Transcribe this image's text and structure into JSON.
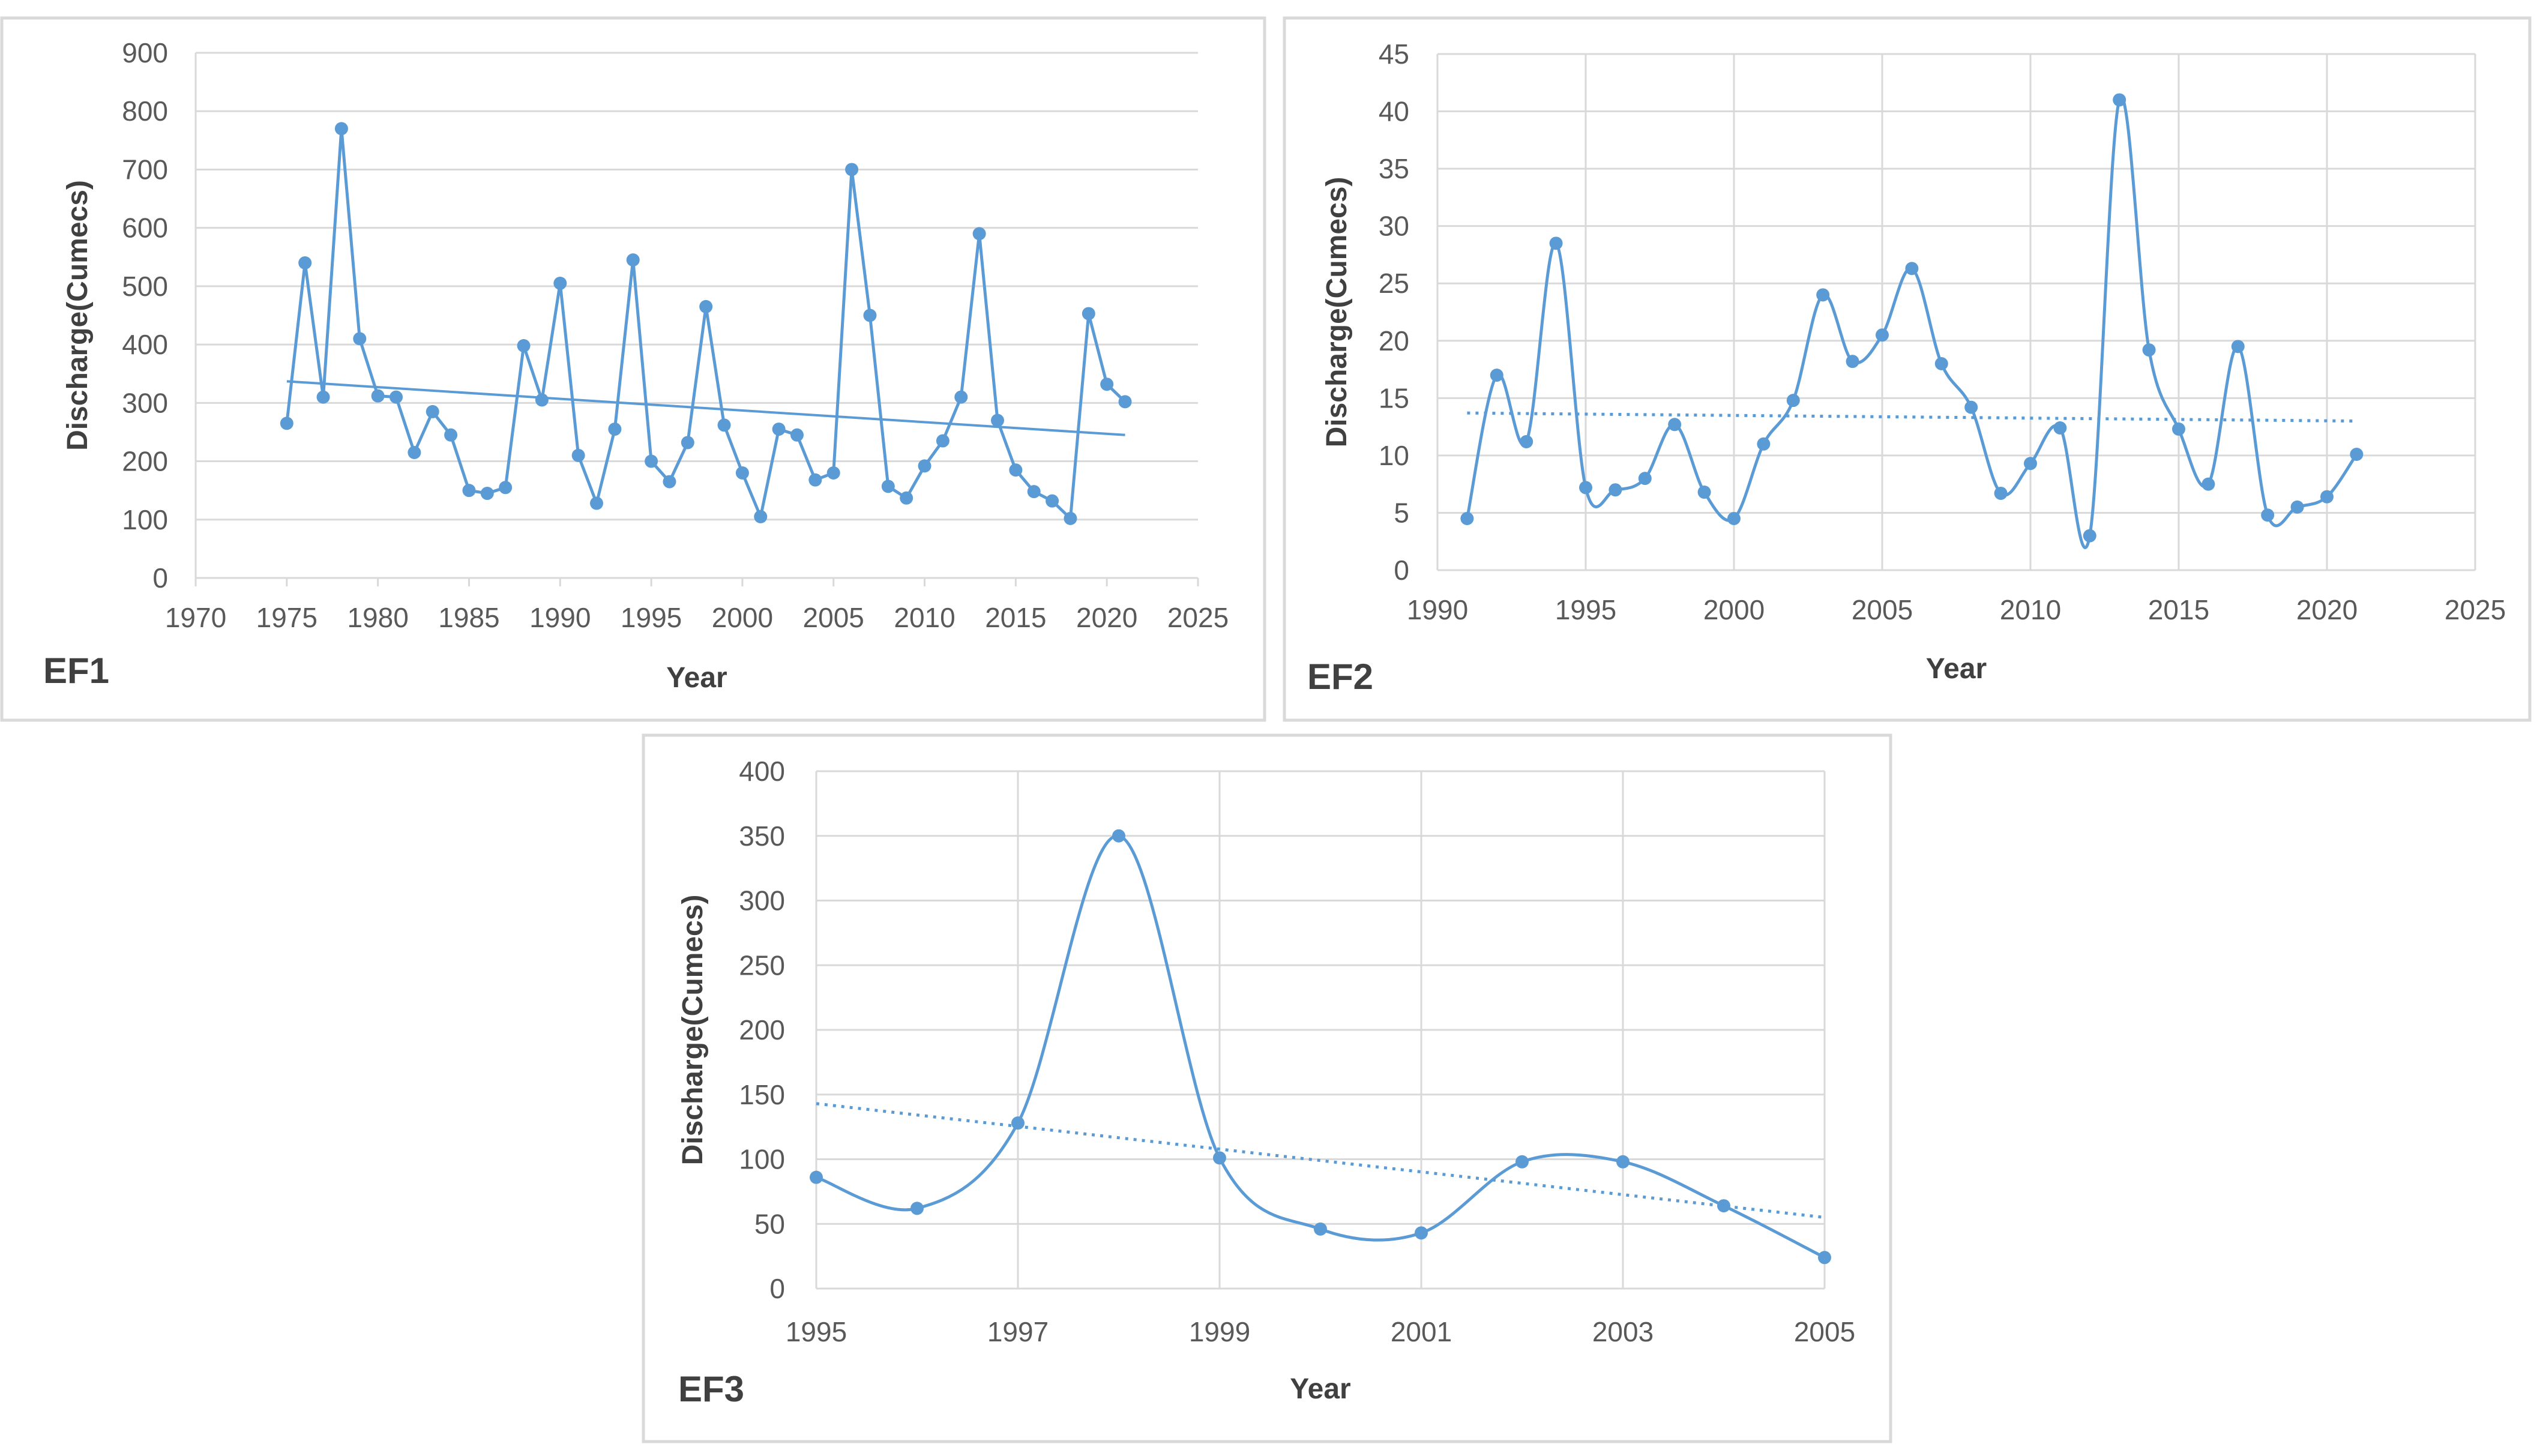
{
  "chart_data": [
    {
      "id": "ef1",
      "type": "line",
      "panel_label": "EF1",
      "xlabel": "Year",
      "ylabel": "Discharge(Cumecs)",
      "xlim": [
        1970,
        2025
      ],
      "xticks": [
        1970,
        1975,
        1980,
        1985,
        1990,
        1995,
        2000,
        2005,
        2010,
        2015,
        2020,
        2025
      ],
      "ylim": [
        0,
        900
      ],
      "yticks": [
        0,
        100,
        200,
        300,
        400,
        500,
        600,
        700,
        800,
        900
      ],
      "grid": "horizontal",
      "smooth": false,
      "trendline": {
        "style": "solid",
        "x": [
          1975,
          2021
        ],
        "y": [
          337,
          245
        ]
      },
      "series": [
        {
          "name": "Discharge",
          "color": "#5b9bd5",
          "x": [
            1975,
            1976,
            1977,
            1978,
            1979,
            1980,
            1981,
            1982,
            1983,
            1984,
            1985,
            1986,
            1987,
            1988,
            1989,
            1990,
            1991,
            1992,
            1993,
            1994,
            1995,
            1996,
            1997,
            1998,
            1999,
            2000,
            2001,
            2002,
            2003,
            2004,
            2005,
            2006,
            2007,
            2008,
            2009,
            2010,
            2011,
            2012,
            2013,
            2014,
            2015,
            2016,
            2017,
            2018,
            2019,
            2020,
            2021
          ],
          "y": [
            265,
            540,
            310,
            770,
            410,
            312,
            310,
            215,
            285,
            245,
            150,
            145,
            155,
            398,
            305,
            505,
            210,
            128,
            255,
            545,
            200,
            165,
            232,
            465,
            262,
            180,
            105,
            255,
            245,
            168,
            180,
            700,
            450,
            157,
            137,
            192,
            235,
            310,
            590,
            270,
            185,
            148,
            132,
            102,
            453,
            332,
            302
          ]
        }
      ]
    },
    {
      "id": "ef2",
      "type": "line",
      "panel_label": "EF2",
      "xlabel": "Year",
      "ylabel": "Discharge(Cumecs)",
      "xlim": [
        1990,
        2025
      ],
      "xticks": [
        1990,
        1995,
        2000,
        2005,
        2010,
        2015,
        2020,
        2025
      ],
      "ylim": [
        0,
        45
      ],
      "yticks": [
        0,
        5,
        10,
        15,
        20,
        25,
        30,
        35,
        40,
        45
      ],
      "grid": "both",
      "smooth": true,
      "trendline": {
        "style": "dotted",
        "x": [
          1991,
          2021
        ],
        "y": [
          13.7,
          13.0
        ]
      },
      "series": [
        {
          "name": "Discharge",
          "color": "#5b9bd5",
          "x": [
            1991,
            1992,
            1993,
            1994,
            1995,
            1996,
            1997,
            1998,
            1999,
            2000,
            2001,
            2002,
            2003,
            2004,
            2005,
            2006,
            2007,
            2008,
            2009,
            2010,
            2011,
            2012,
            2013,
            2014,
            2015,
            2016,
            2017,
            2018,
            2019,
            2020,
            2021
          ],
          "y": [
            4.5,
            17,
            11.2,
            28.5,
            7.2,
            7.0,
            8.0,
            12.7,
            6.8,
            4.5,
            11.0,
            14.8,
            24.0,
            18.2,
            20.5,
            26.3,
            18.0,
            14.2,
            6.7,
            9.3,
            12.4,
            3.0,
            41.0,
            19.2,
            12.3,
            7.5,
            19.5,
            4.8,
            5.5,
            6.4,
            10.1
          ]
        }
      ]
    },
    {
      "id": "ef3",
      "type": "line",
      "panel_label": "EF3",
      "xlabel": "Year",
      "ylabel": "Discharge(Cumecs)",
      "xlim": [
        1995,
        2005
      ],
      "xticks": [
        1995,
        1997,
        1999,
        2001,
        2003,
        2005
      ],
      "ylim": [
        0,
        400
      ],
      "yticks": [
        0,
        50,
        100,
        150,
        200,
        250,
        300,
        350,
        400
      ],
      "grid": "both",
      "smooth": true,
      "trendline": {
        "style": "dotted",
        "x": [
          1995,
          2005
        ],
        "y": [
          143,
          55
        ]
      },
      "series": [
        {
          "name": "Discharge",
          "color": "#5b9bd5",
          "x": [
            1995,
            1996,
            1997,
            1998,
            1999,
            2000,
            2001,
            2002,
            2003,
            2004,
            2005
          ],
          "y": [
            86,
            62,
            128,
            350,
            101,
            46,
            43,
            98,
            98,
            64,
            24
          ]
        }
      ]
    }
  ]
}
